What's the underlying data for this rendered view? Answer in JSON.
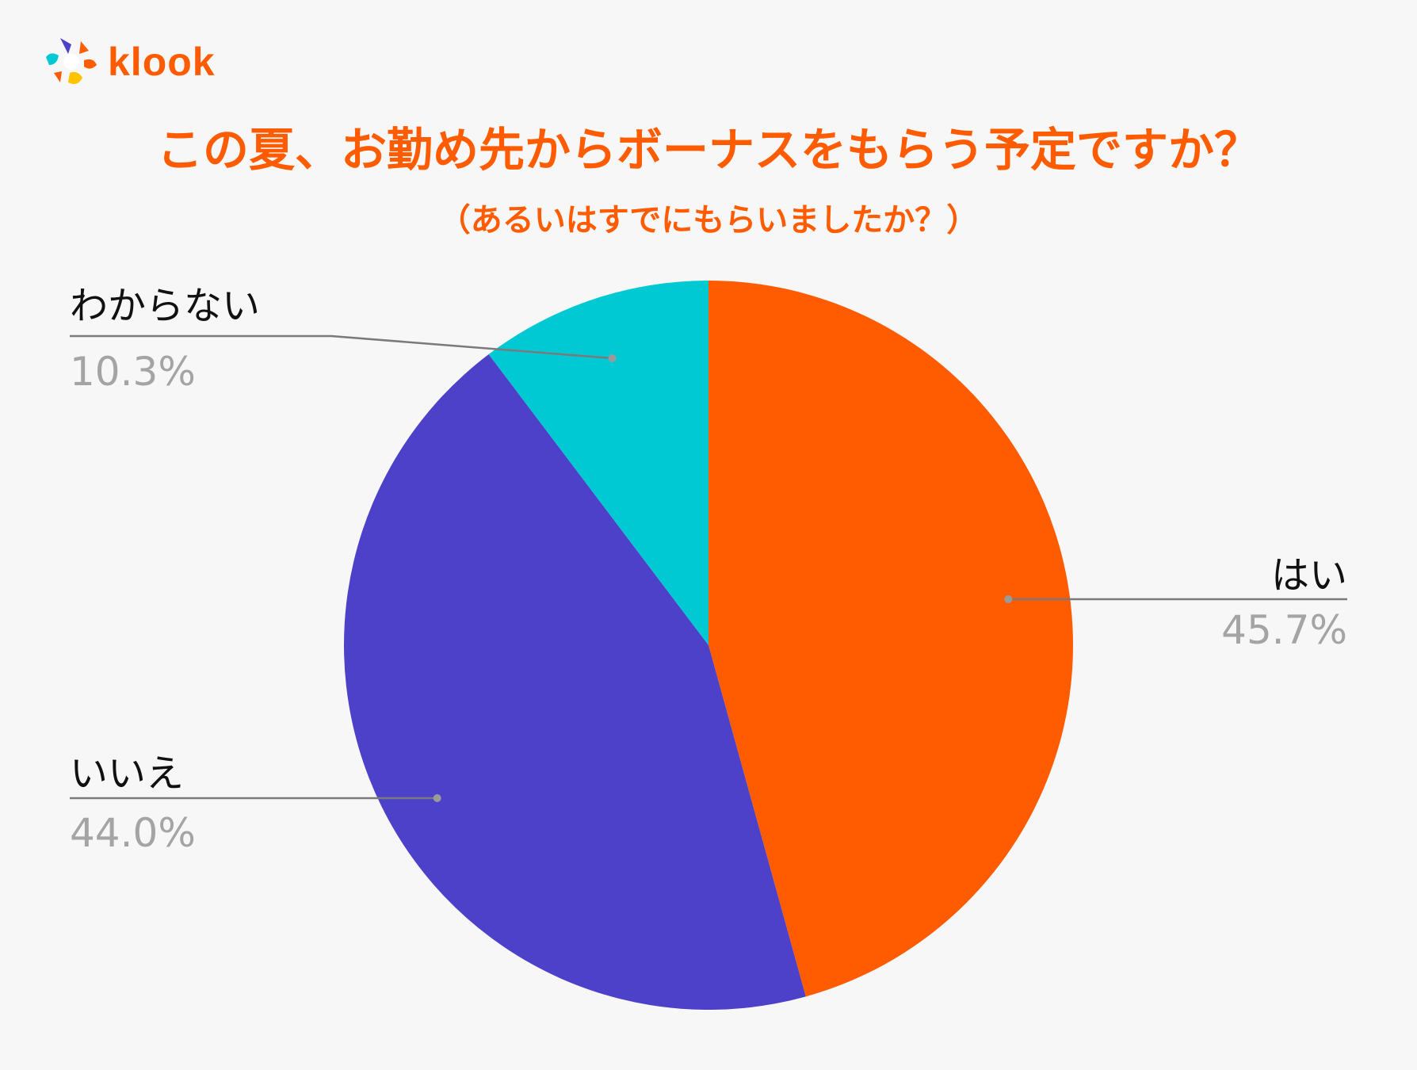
{
  "brand": {
    "name": "klook",
    "color": "#ff5b00"
  },
  "title": "この夏、お勤め先からボーナスをもらう予定ですか？",
  "subtitle": "（あるいはすでにもらいましたか？）",
  "colors": {
    "title": "#ff5b00",
    "label": "#111111",
    "percent": "#a4a4a4",
    "leader": "#7a7a7a"
  },
  "chart_data": {
    "type": "pie",
    "title": "この夏、お勤め先からボーナスをもらう予定ですか？",
    "subtitle": "（あるいはすでにもらいましたか？）",
    "start_angle": "12 o'clock",
    "direction": "clockwise",
    "legend": "none",
    "slices": [
      {
        "label": "はい",
        "value": 45.7,
        "value_label": "45.7%",
        "color": "#ff5b00",
        "label_position": "right"
      },
      {
        "label": "いいえ",
        "value": 44.0,
        "value_label": "44.0%",
        "color": "#4d40c9",
        "label_position": "left-bottom"
      },
      {
        "label": "わからない",
        "value": 10.3,
        "value_label": "10.3%",
        "color": "#00c9d3",
        "label_position": "left-top"
      }
    ]
  }
}
